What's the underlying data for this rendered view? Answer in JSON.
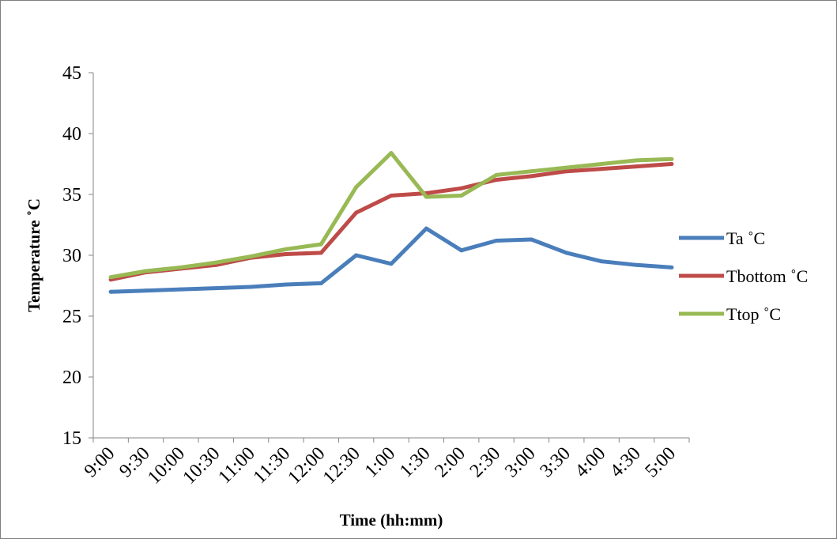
{
  "chart_data": {
    "type": "line",
    "title": "",
    "xlabel": "Time (hh:mm)",
    "ylabel": "Temperature ˚C",
    "ylim": [
      15,
      45
    ],
    "yticks": [
      15,
      20,
      25,
      30,
      35,
      40,
      45
    ],
    "grid": false,
    "legend_position": "right",
    "categories": [
      "9:00",
      "9:30",
      "10:00",
      "10:30",
      "11:00",
      "11:30",
      "12:00",
      "12:30",
      "1:00",
      "1:30",
      "2:00",
      "2:30",
      "3:00",
      "3:30",
      "4:00",
      "4:30",
      "5:00"
    ],
    "series": [
      {
        "name": "Ta ˚C",
        "color": "#4a7ebb",
        "values": [
          27.0,
          27.1,
          27.2,
          27.3,
          27.4,
          27.6,
          27.7,
          30.0,
          29.3,
          32.2,
          30.4,
          31.2,
          31.3,
          30.2,
          29.5,
          29.2,
          29.0
        ]
      },
      {
        "name": "Tbottom ˚C",
        "color": "#be4b48",
        "values": [
          28.0,
          28.6,
          28.9,
          29.2,
          29.8,
          30.1,
          30.2,
          33.5,
          34.9,
          35.1,
          35.5,
          36.2,
          36.5,
          36.9,
          37.1,
          37.3,
          37.5
        ]
      },
      {
        "name": "Ttop ˚C",
        "color": "#98b954",
        "values": [
          28.2,
          28.7,
          29.0,
          29.4,
          29.9,
          30.5,
          30.9,
          35.6,
          38.4,
          34.8,
          34.9,
          36.6,
          36.9,
          37.2,
          37.5,
          37.8,
          37.9
        ]
      }
    ]
  }
}
